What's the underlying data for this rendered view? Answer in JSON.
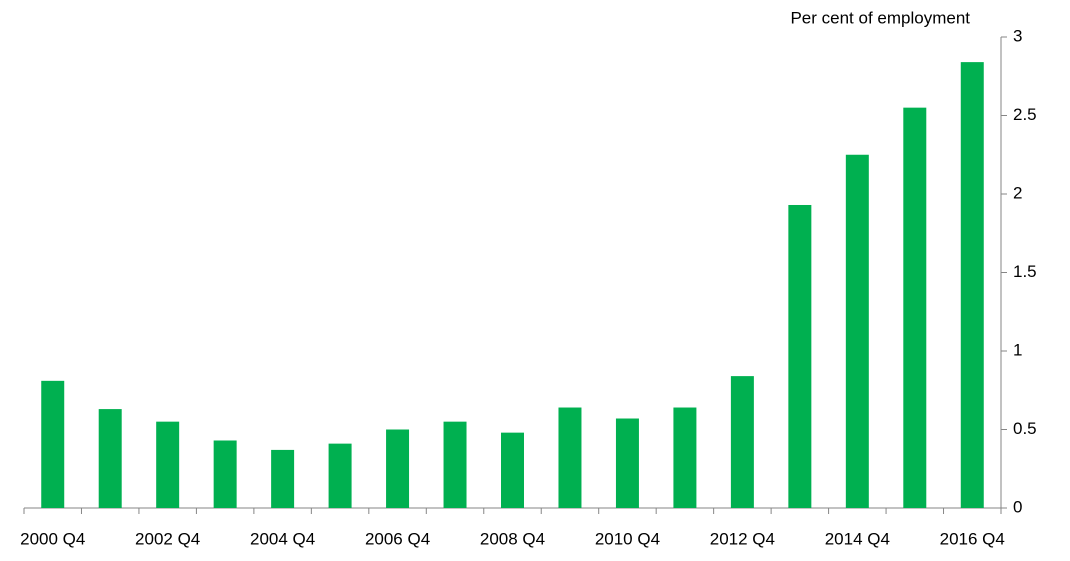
{
  "chart_data": {
    "type": "bar",
    "y_axis_label": "Per cent of employment",
    "categories": [
      "2000 Q4",
      null,
      "2002 Q4",
      null,
      "2004 Q4",
      null,
      "2006 Q4",
      null,
      "2008 Q4",
      null,
      "2010 Q4",
      null,
      "2012 Q4",
      null,
      "2014 Q4",
      null,
      "2016 Q4"
    ],
    "values": [
      0.81,
      0.63,
      0.55,
      0.43,
      0.37,
      0.41,
      0.5,
      0.55,
      0.48,
      0.64,
      0.57,
      0.64,
      0.84,
      1.93,
      2.25,
      2.55,
      2.84
    ],
    "color": "#00b050",
    "ylim": [
      0,
      3
    ],
    "yticks": [
      0,
      0.5,
      1,
      1.5,
      2,
      2.5,
      3
    ],
    "y_axis_side": "right",
    "grid": false
  }
}
